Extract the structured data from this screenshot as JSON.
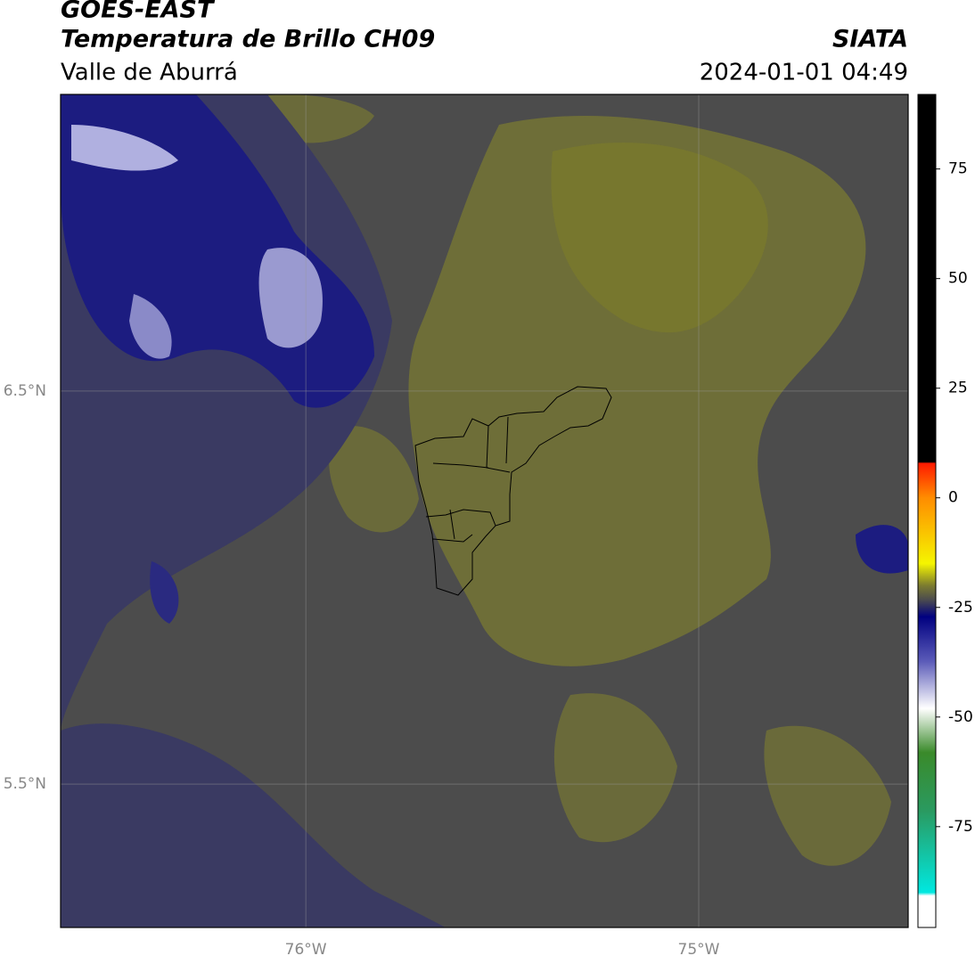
{
  "header": {
    "title": "GOES-EAST",
    "subtitle": "Temperatura de Brillo CH09",
    "region": "Valle de Aburrá",
    "brand": "SIATA",
    "timestamp": "2024-01-01 04:49"
  },
  "map": {
    "xlim": [
      -76.624,
      -74.467
    ],
    "ylim": [
      5.135,
      7.255
    ],
    "xticks": [
      {
        "value": -76,
        "label": "76°W"
      },
      {
        "value": -75,
        "label": "75°W"
      }
    ],
    "yticks": [
      {
        "value": 6.5,
        "label": "6.5°N"
      },
      {
        "value": 5.5,
        "label": "5.5°N"
      }
    ],
    "grid": true
  },
  "colorbar": {
    "lim": [
      -98,
      92
    ],
    "ticks": [
      75,
      50,
      25,
      0,
      -25,
      -50,
      -75
    ]
  }
}
